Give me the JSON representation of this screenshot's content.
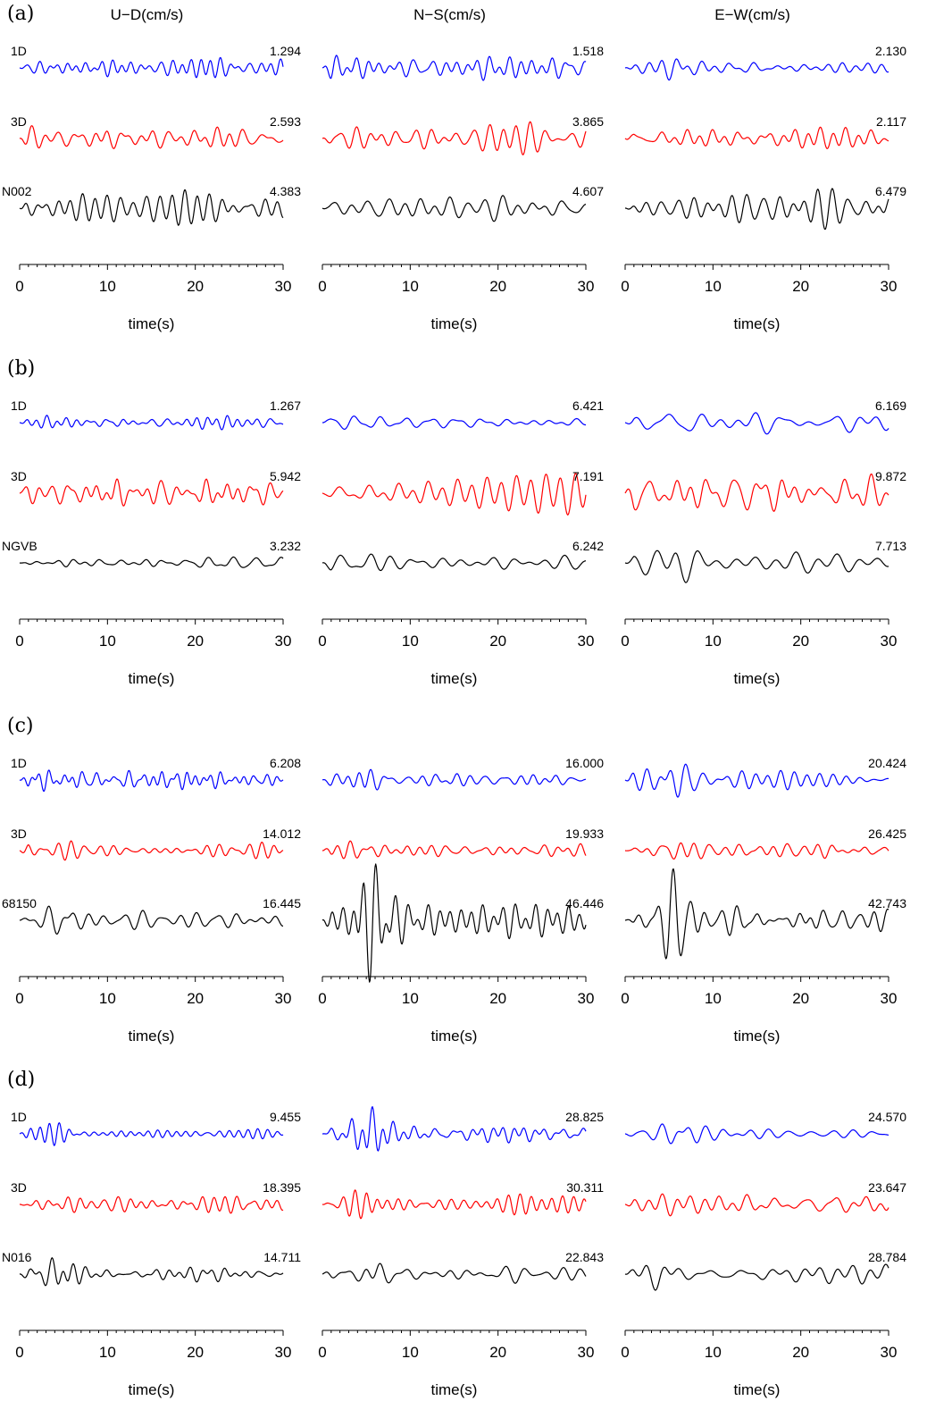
{
  "chart_data": {
    "type": "line",
    "columns": [
      {
        "label": "U−D(cm/s)"
      },
      {
        "label": "N−S(cm/s)"
      },
      {
        "label": "E−W(cm/s)"
      }
    ],
    "xlabel": "time(s)",
    "xlim": [
      0,
      30
    ],
    "xticks": [
      0,
      10,
      20,
      30
    ],
    "minor_tick_step": 1,
    "grid": false,
    "series_colors": {
      "1D": "#0000ff",
      "3D": "#ff0000",
      "observed": "#000000"
    },
    "panels": [
      {
        "label": "(a)",
        "station": "N002",
        "rows": [
          {
            "label": "1D",
            "color": "#0000ff",
            "peaks": [
              "1.294",
              "1.518",
              "2.130"
            ],
            "shape": [
              {
                "decay": 0,
                "freq": 0.75,
                "amp": 0.8
              },
              {
                "decay": 0,
                "freq": 0.7,
                "amp": 0.9
              },
              {
                "decay": 0.15,
                "freq": 0.55,
                "amp": 1.3
              }
            ]
          },
          {
            "label": "3D",
            "color": "#ff0000",
            "peaks": [
              "2.593",
              "3.865",
              "2.117"
            ],
            "shape": [
              {
                "decay": 0,
                "freq": 0.55,
                "amp": 1.0
              },
              {
                "decay": 0,
                "freq": 0.5,
                "amp": 1.2
              },
              {
                "decay": 0,
                "freq": 0.55,
                "amp": 0.9
              }
            ]
          },
          {
            "label": "N002",
            "color": "#000000",
            "peaks": [
              "4.383",
              "4.607",
              "6.479"
            ],
            "shape": [
              {
                "decay": 0,
                "freq": 0.55,
                "amp": 1.4
              },
              {
                "decay": 0,
                "freq": 0.45,
                "amp": 1.3
              },
              {
                "decay": -0.4,
                "freq": 0.5,
                "amp": 1.5
              }
            ]
          }
        ]
      },
      {
        "label": "(b)",
        "station": "NGVB",
        "rows": [
          {
            "label": "1D",
            "color": "#0000ff",
            "peaks": [
              "1.267",
              "6.421",
              "6.169"
            ],
            "shape": [
              {
                "decay": 0,
                "freq": 0.7,
                "amp": 0.6
              },
              {
                "decay": 0.1,
                "freq": 0.5,
                "amp": 1.6
              },
              {
                "decay": 0.2,
                "freq": 0.35,
                "amp": 1.6
              }
            ]
          },
          {
            "label": "3D",
            "color": "#ff0000",
            "peaks": [
              "5.942",
              "7.191",
              "9.872"
            ],
            "shape": [
              {
                "decay": 0,
                "freq": 0.6,
                "amp": 1.2
              },
              {
                "decay": 0,
                "freq": 0.45,
                "amp": 1.4
              },
              {
                "decay": 0,
                "freq": 0.5,
                "amp": 1.6
              }
            ]
          },
          {
            "label": "NGVB",
            "color": "#000000",
            "peaks": [
              "3.232",
              "6.242",
              "7.713"
            ],
            "shape": [
              {
                "decay": 0.05,
                "freq": 0.5,
                "amp": 1.0
              },
              {
                "decay": 0.25,
                "freq": 0.35,
                "amp": 1.5
              },
              {
                "decay": 0.25,
                "freq": 0.3,
                "amp": 1.6
              }
            ]
          }
        ]
      },
      {
        "label": "(c)",
        "station": "68150",
        "rows": [
          {
            "label": "1D",
            "color": "#0000ff",
            "peaks": [
              "6.208",
              "16.000",
              "20.424"
            ],
            "shape": [
              {
                "decay": 0,
                "freq": 0.8,
                "amp": 0.7
              },
              {
                "decay": 0.3,
                "freq": 0.55,
                "amp": 1.3
              },
              {
                "decay": 0.4,
                "freq": 0.5,
                "amp": 1.6
              }
            ]
          },
          {
            "label": "3D",
            "color": "#ff0000",
            "peaks": [
              "14.012",
              "19.933",
              "26.425"
            ],
            "shape": [
              {
                "decay": 0.1,
                "freq": 0.6,
                "amp": 1.3
              },
              {
                "decay": 0.1,
                "freq": 0.55,
                "amp": 1.3
              },
              {
                "decay": 0.15,
                "freq": 0.55,
                "amp": 1.5
              }
            ]
          },
          {
            "label": "68150",
            "color": "#000000",
            "peaks": [
              "16.445",
              "46.446",
              "42.743"
            ],
            "shape": [
              {
                "decay": 0.35,
                "freq": 0.45,
                "amp": 1.4
              },
              {
                "decay": 0.5,
                "freq": 0.55,
                "amp": 3.4
              },
              {
                "decay": 0.5,
                "freq": 0.55,
                "amp": 3.1
              }
            ]
          }
        ]
      },
      {
        "label": "(d)",
        "station": "N016",
        "rows": [
          {
            "label": "1D",
            "color": "#0000ff",
            "peaks": [
              "9.455",
              "28.825",
              "24.570"
            ],
            "shape": [
              {
                "decay": 0.4,
                "freq": 0.65,
                "amp": 1.0
              },
              {
                "decay": 0.45,
                "freq": 0.6,
                "amp": 1.9
              },
              {
                "decay": 0.45,
                "freq": 0.45,
                "amp": 1.6
              }
            ]
          },
          {
            "label": "3D",
            "color": "#ff0000",
            "peaks": [
              "18.395",
              "30.311",
              "23.647"
            ],
            "shape": [
              {
                "decay": 0.05,
                "freq": 0.6,
                "amp": 1.3
              },
              {
                "decay": 0.2,
                "freq": 0.6,
                "amp": 1.7
              },
              {
                "decay": 0.05,
                "freq": 0.45,
                "amp": 1.5
              }
            ]
          },
          {
            "label": "N016",
            "color": "#000000",
            "peaks": [
              "14.711",
              "22.843",
              "28.784"
            ],
            "shape": [
              {
                "decay": 0.3,
                "freq": 0.55,
                "amp": 1.3
              },
              {
                "decay": 0.3,
                "freq": 0.45,
                "amp": 1.5
              },
              {
                "decay": 0.35,
                "freq": 0.4,
                "amp": 1.6
              }
            ]
          }
        ]
      }
    ]
  }
}
